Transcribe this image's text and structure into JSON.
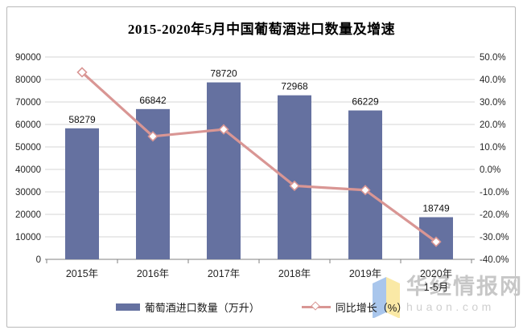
{
  "page": {
    "background": "#ffffff",
    "card_border_color": "#b9b9b9"
  },
  "chart_data": {
    "type": "combo",
    "title": "2015-2020年5月中国葡萄酒进口数量及增速",
    "categories": [
      "2015年",
      "2016年",
      "2017年",
      "2018年",
      "2019年",
      "2020年"
    ],
    "category_sublabels": [
      "",
      "",
      "",
      "",
      "",
      "1-5月"
    ],
    "bar_series": {
      "name": "葡萄酒进口数量（万升）",
      "values": [
        58279,
        66842,
        78720,
        72968,
        66229,
        18749
      ],
      "color": "#6571A0"
    },
    "line_series": {
      "name": "同比增长（%）",
      "values": [
        43.2,
        14.7,
        17.8,
        -7.3,
        -9.2,
        -32.2
      ],
      "color": "#D99694",
      "marker": "diamond",
      "marker_fill": "#FFFFFF"
    },
    "y_left_axis": {
      "min": 0,
      "max": 90000,
      "step": 10000,
      "labels": [
        "0",
        "10000",
        "20000",
        "30000",
        "40000",
        "50000",
        "60000",
        "70000",
        "80000",
        "90000"
      ]
    },
    "y_right_axis": {
      "min": -40,
      "max": 50,
      "step": 10,
      "labels": [
        "-40.0%",
        "-30.0%",
        "-20.0%",
        "-10.0%",
        "0.0%",
        "10.0%",
        "20.0%",
        "30.0%",
        "40.0%",
        "50.0%"
      ]
    },
    "grid": true,
    "grid_color": "#D4D4D4",
    "axis_color": "#808080",
    "label_color": "#262626",
    "legend_position": "bottom"
  },
  "watermark": {
    "logo": "open-book-icon",
    "title": "华经情报网",
    "domain": "huaon.com",
    "logo_left_color": "#A9C6EC",
    "logo_right_color": "#FAE9A6"
  }
}
